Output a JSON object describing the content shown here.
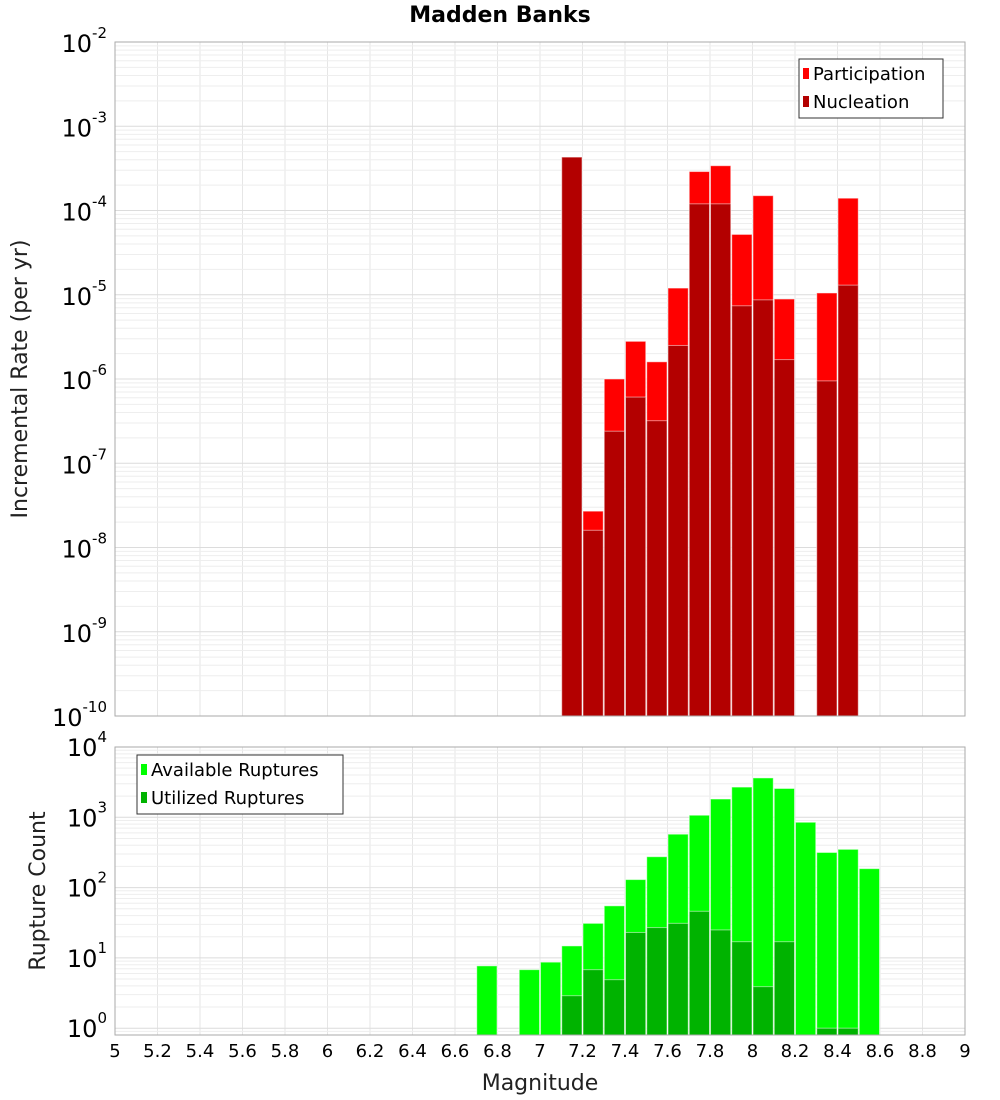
{
  "chart_data": [
    {
      "type": "bar",
      "title": "Madden Banks",
      "ylabel": "Incremental Rate (per yr)",
      "xlabel": "",
      "yscale": "log",
      "ylim": [
        1e-10,
        0.01
      ],
      "xlim": [
        5,
        9
      ],
      "ytick_exponents": [
        "-2",
        "-3",
        "-4",
        "-5",
        "-6",
        "-7",
        "-8",
        "-9",
        "-10"
      ],
      "grid": true,
      "legend_position": "top-right",
      "bin_width": 0.1,
      "x": [
        7.15,
        7.25,
        7.35,
        7.45,
        7.55,
        7.65,
        7.75,
        7.85,
        7.95,
        8.05,
        8.15,
        8.35,
        8.45
      ],
      "series": [
        {
          "name": "Participation",
          "color": "#ff0000",
          "values": [
            0.00043,
            2.7e-08,
            1e-06,
            2.8e-06,
            1.6e-06,
            1.2e-05,
            0.00029,
            0.00034,
            5.2e-05,
            0.00015,
            8.9e-06,
            1.05e-05,
            0.00014
          ]
        },
        {
          "name": "Nucleation",
          "color": "#b30000",
          "values": [
            0.00043,
            1.6e-08,
            2.4e-07,
            6.1e-07,
            3.2e-07,
            2.5e-06,
            0.00012,
            0.00012,
            7.4e-06,
            8.7e-06,
            1.7e-06,
            9.5e-07,
            1.3e-05
          ]
        }
      ]
    },
    {
      "type": "bar",
      "title": "",
      "ylabel": "Rupture Count",
      "xlabel": "Magnitude",
      "yscale": "log",
      "ylim": [
        0.8,
        10000
      ],
      "xlim": [
        5,
        9
      ],
      "ytick_exponents": [
        "4",
        "3",
        "2",
        "1",
        "0"
      ],
      "xticks": [
        "5",
        "5.2",
        "5.4",
        "5.6",
        "5.8",
        "6",
        "6.2",
        "6.4",
        "6.6",
        "6.8",
        "7",
        "7.2",
        "7.4",
        "7.6",
        "7.8",
        "8",
        "8.2",
        "8.4",
        "8.6",
        "8.8",
        "9"
      ],
      "grid": true,
      "legend_position": "top-left",
      "bin_width": 0.1,
      "x": [
        6.75,
        6.95,
        7.05,
        7.15,
        7.25,
        7.35,
        7.45,
        7.55,
        7.65,
        7.75,
        7.85,
        7.95,
        8.05,
        8.15,
        8.25,
        8.35,
        8.45,
        8.55
      ],
      "series": [
        {
          "name": "Available Ruptures",
          "color": "#00ff00",
          "values": [
            7.7,
            6.8,
            8.7,
            14.8,
            31,
            55,
            130,
            275,
            575,
            1070,
            1820,
            2690,
            3630,
            2570,
            850,
            316,
            350,
            186
          ]
        },
        {
          "name": "Utilized Ruptures",
          "color": "#00b300",
          "values": [
            0,
            0,
            0,
            2.9,
            6.8,
            4.9,
            23,
            27,
            31,
            46,
            25,
            17,
            3.9,
            17,
            0,
            1,
            1,
            0
          ]
        }
      ]
    }
  ]
}
